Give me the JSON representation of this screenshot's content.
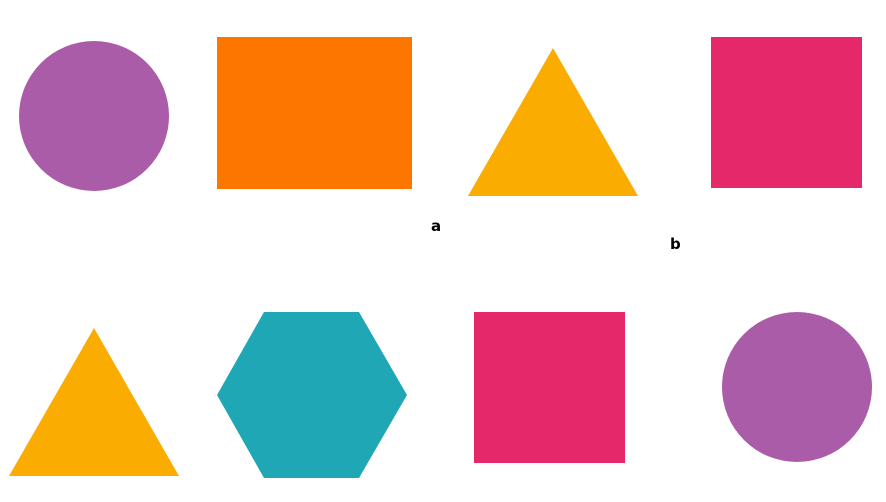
{
  "shapes": [
    {
      "id": "shape-1",
      "kind": "circle",
      "row": 1,
      "column": 1,
      "color": "#AB5CA8"
    },
    {
      "id": "shape-2",
      "kind": "rectangle",
      "row": 1,
      "column": 2,
      "color": "#FD7600"
    },
    {
      "id": "shape-3",
      "kind": "triangle",
      "row": 1,
      "column": 3,
      "color": "#FBAC00"
    },
    {
      "id": "shape-4",
      "kind": "square",
      "row": 1,
      "column": 4,
      "color": "#E5286A"
    },
    {
      "id": "shape-5",
      "kind": "triangle",
      "row": 2,
      "column": 1,
      "color": "#FBAC00"
    },
    {
      "id": "shape-6",
      "kind": "hexagon",
      "row": 2,
      "column": 2,
      "color": "#1FA7B6"
    },
    {
      "id": "shape-7",
      "kind": "square",
      "row": 2,
      "column": 3,
      "color": "#E5286A"
    },
    {
      "id": "shape-8",
      "kind": "circle",
      "row": 2,
      "column": 4,
      "color": "#AB5CA8"
    }
  ],
  "marks": {
    "mark_a": "a",
    "mark_b": "b"
  }
}
